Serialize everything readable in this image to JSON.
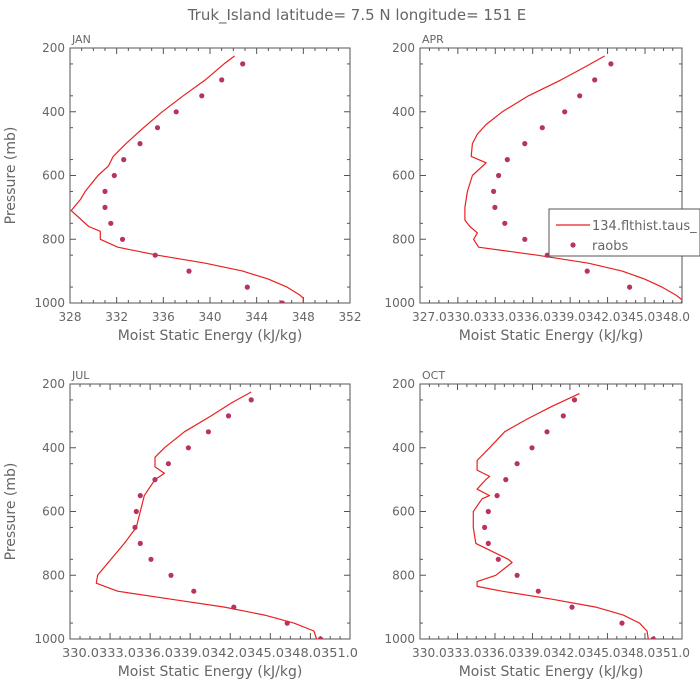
{
  "title": "Truk_Island  latitude= 7.5 N longitude= 151 E",
  "legend": {
    "model_label": "134.flthist.taus_",
    "obs_label": "raobs"
  },
  "colors": {
    "model": "#e8211f",
    "obs": "#b83262",
    "axis": "#555555",
    "text": "#666666"
  },
  "chart_data": [
    {
      "type": "line",
      "panel_label": "JAN",
      "xlabel": "Moist Static Energy (kJ/kg)",
      "ylabel": "Pressure (mb)",
      "xlim": [
        328,
        352
      ],
      "xticks": [
        328,
        332,
        336,
        340,
        344,
        348,
        352
      ],
      "xtick_labels": [
        "328",
        "332",
        "336",
        "340",
        "344",
        "348",
        "352"
      ],
      "ylim": [
        200,
        1000
      ],
      "yticks": [
        200,
        400,
        600,
        800,
        1000
      ],
      "y_inverted": true,
      "series": [
        {
          "name": "134.flthist.taus_",
          "kind": "line",
          "points": [
            [
              342.1,
              225
            ],
            [
              341.2,
              250
            ],
            [
              339.6,
              300
            ],
            [
              337.7,
              350
            ],
            [
              335.9,
              400
            ],
            [
              334.3,
              450
            ],
            [
              332.8,
              500
            ],
            [
              331.7,
              540
            ],
            [
              331.3,
              570
            ],
            [
              330.4,
              600
            ],
            [
              329.3,
              650
            ],
            [
              328.9,
              675
            ],
            [
              328.1,
              710
            ],
            [
              329.6,
              760
            ],
            [
              330.6,
              775
            ],
            [
              330.6,
              800
            ],
            [
              332.1,
              825
            ],
            [
              335.5,
              850
            ],
            [
              339.6,
              875
            ],
            [
              342.8,
              900
            ],
            [
              345.0,
              925
            ],
            [
              346.6,
              950
            ],
            [
              347.7,
              975
            ],
            [
              348.0,
              985
            ],
            [
              348.0,
              1000
            ]
          ]
        },
        {
          "name": "raobs",
          "kind": "scatter",
          "points": [
            [
              342.8,
              250
            ],
            [
              341.0,
              300
            ],
            [
              339.3,
              350
            ],
            [
              337.1,
              400
            ],
            [
              335.5,
              450
            ],
            [
              334.0,
              500
            ],
            [
              332.6,
              550
            ],
            [
              331.8,
              600
            ],
            [
              331.0,
              650
            ],
            [
              331.0,
              700
            ],
            [
              331.5,
              750
            ],
            [
              332.5,
              800
            ],
            [
              335.3,
              850
            ],
            [
              338.2,
              900
            ],
            [
              343.2,
              950
            ],
            [
              346.2,
              1000
            ]
          ]
        }
      ]
    },
    {
      "type": "line",
      "panel_label": "APR",
      "xlabel": "Moist Static Energy (kJ/kg)",
      "ylabel": "",
      "xlim": [
        327.0,
        348.0
      ],
      "xticks": [
        327.0,
        330.0333,
        333.0333,
        336.0333,
        339.0333,
        342.0333,
        345.0333,
        348.0
      ],
      "xtick_labels": [
        "327.0",
        "330.0",
        "333.0",
        "336.0",
        "339.0",
        "342.0",
        "345.0",
        "348.0"
      ],
      "xtick_label_text": "327.0330.0333.0336.0339.0342.0345.0348.0",
      "ylim": [
        200,
        1000
      ],
      "yticks": [
        200,
        400,
        600,
        800,
        1000
      ],
      "y_inverted": true,
      "series": [
        {
          "name": "134.flthist.taus_",
          "kind": "line",
          "points": [
            [
              341.8,
              225
            ],
            [
              340.2,
              260
            ],
            [
              338.3,
              300
            ],
            [
              335.7,
              350
            ],
            [
              333.6,
              400
            ],
            [
              332.3,
              440
            ],
            [
              331.6,
              470
            ],
            [
              331.2,
              500
            ],
            [
              331.1,
              540
            ],
            [
              332.3,
              560
            ],
            [
              331.2,
              600
            ],
            [
              330.8,
              650
            ],
            [
              330.6,
              700
            ],
            [
              330.6,
              740
            ],
            [
              331.0,
              760
            ],
            [
              331.6,
              780
            ],
            [
              331.3,
              800
            ],
            [
              331.7,
              825
            ],
            [
              336.4,
              850
            ],
            [
              340.5,
              875
            ],
            [
              343.2,
              900
            ],
            [
              345.0,
              925
            ],
            [
              346.4,
              950
            ],
            [
              347.5,
              975
            ],
            [
              348.0,
              990
            ],
            [
              348.0,
              1000
            ]
          ]
        },
        {
          "name": "raobs",
          "kind": "scatter",
          "points": [
            [
              342.3,
              250
            ],
            [
              341.0,
              300
            ],
            [
              339.8,
              350
            ],
            [
              338.6,
              400
            ],
            [
              336.8,
              450
            ],
            [
              335.4,
              500
            ],
            [
              334.0,
              550
            ],
            [
              333.3,
              600
            ],
            [
              332.9,
              650
            ],
            [
              333.0,
              700
            ],
            [
              333.8,
              750
            ],
            [
              335.4,
              800
            ],
            [
              337.2,
              850
            ],
            [
              340.4,
              900
            ],
            [
              343.8,
              950
            ],
            [
              348.1,
              1000
            ]
          ]
        }
      ]
    },
    {
      "type": "line",
      "panel_label": "JUL",
      "xlabel": "Moist Static Energy (kJ/kg)",
      "ylabel": "Pressure (mb)",
      "xlim": [
        330.0333,
        351.0
      ],
      "xticks": [
        330.0333,
        333.0333,
        336.0333,
        339.0333,
        342.0333,
        345.0333,
        348.0333,
        351.0
      ],
      "xtick_labels": [
        "330.0",
        "333.0",
        "336.0",
        "339.0",
        "342.0",
        "345.0",
        "348.0",
        "351.0"
      ],
      "xtick_label_text": "330.0333.0336.0339.0342.0345.0348.0351.0",
      "ylim": [
        200,
        1000
      ],
      "yticks": [
        200,
        400,
        600,
        800,
        1000
      ],
      "y_inverted": true,
      "series": [
        {
          "name": "134.flthist.taus_",
          "kind": "line",
          "points": [
            [
              343.6,
              225
            ],
            [
              342.1,
              260
            ],
            [
              340.6,
              300
            ],
            [
              338.6,
              350
            ],
            [
              337.1,
              400
            ],
            [
              336.4,
              430
            ],
            [
              336.4,
              460
            ],
            [
              337.1,
              480
            ],
            [
              336.4,
              500
            ],
            [
              335.6,
              550
            ],
            [
              335.3,
              600
            ],
            [
              335.0,
              650
            ],
            [
              334.1,
              700
            ],
            [
              333.1,
              750
            ],
            [
              332.1,
              800
            ],
            [
              332.0,
              825
            ],
            [
              333.6,
              850
            ],
            [
              337.6,
              875
            ],
            [
              341.6,
              900
            ],
            [
              344.6,
              925
            ],
            [
              346.8,
              950
            ],
            [
              348.3,
              975
            ],
            [
              348.5,
              1000
            ]
          ]
        },
        {
          "name": "raobs",
          "kind": "scatter",
          "points": [
            [
              343.6,
              250
            ],
            [
              341.9,
              300
            ],
            [
              340.4,
              350
            ],
            [
              338.9,
              400
            ],
            [
              337.4,
              450
            ],
            [
              336.4,
              500
            ],
            [
              335.3,
              550
            ],
            [
              335.0,
              600
            ],
            [
              334.9,
              650
            ],
            [
              335.3,
              700
            ],
            [
              336.1,
              750
            ],
            [
              337.6,
              800
            ],
            [
              339.3,
              850
            ],
            [
              342.3,
              900
            ],
            [
              346.3,
              950
            ],
            [
              348.8,
              1000
            ]
          ]
        }
      ]
    },
    {
      "type": "line",
      "panel_label": "OCT",
      "xlabel": "Moist Static Energy (kJ/kg)",
      "ylabel": "",
      "xlim": [
        330.0333,
        351.0
      ],
      "xticks": [
        330.0333,
        333.0333,
        336.0333,
        339.0333,
        342.0333,
        345.0333,
        348.0333,
        351.0
      ],
      "xtick_labels": [
        "330.0",
        "333.0",
        "336.0",
        "339.0",
        "342.0",
        "345.0",
        "348.0",
        "351.0"
      ],
      "xtick_label_text": "330.0333.0336.0339.0342.0345.0348.0351.0",
      "ylim": [
        200,
        1000
      ],
      "yticks": [
        200,
        400,
        600,
        800,
        1000
      ],
      "y_inverted": true,
      "series": [
        {
          "name": "134.flthist.taus_",
          "kind": "line",
          "points": [
            [
              342.8,
              230
            ],
            [
              340.6,
              270
            ],
            [
              338.6,
              310
            ],
            [
              336.8,
              350
            ],
            [
              335.6,
              400
            ],
            [
              334.6,
              440
            ],
            [
              334.6,
              470
            ],
            [
              335.6,
              490
            ],
            [
              335.3,
              500
            ],
            [
              334.6,
              530
            ],
            [
              335.6,
              550
            ],
            [
              335.0,
              560
            ],
            [
              334.3,
              600
            ],
            [
              334.3,
              650
            ],
            [
              334.5,
              700
            ],
            [
              337.1,
              750
            ],
            [
              337.4,
              760
            ],
            [
              336.1,
              800
            ],
            [
              334.6,
              820
            ],
            [
              334.6,
              835
            ],
            [
              336.6,
              850
            ],
            [
              340.6,
              875
            ],
            [
              344.1,
              900
            ],
            [
              346.3,
              925
            ],
            [
              347.6,
              950
            ],
            [
              348.2,
              975
            ],
            [
              348.3,
              1000
            ]
          ]
        },
        {
          "name": "raobs",
          "kind": "scatter",
          "points": [
            [
              342.4,
              250
            ],
            [
              341.5,
              300
            ],
            [
              340.2,
              350
            ],
            [
              339.0,
              400
            ],
            [
              337.8,
              450
            ],
            [
              336.9,
              500
            ],
            [
              336.2,
              550
            ],
            [
              335.5,
              600
            ],
            [
              335.2,
              650
            ],
            [
              335.5,
              700
            ],
            [
              336.3,
              750
            ],
            [
              337.8,
              800
            ],
            [
              339.5,
              850
            ],
            [
              342.2,
              900
            ],
            [
              346.2,
              950
            ],
            [
              348.7,
              1000
            ]
          ]
        }
      ]
    }
  ]
}
